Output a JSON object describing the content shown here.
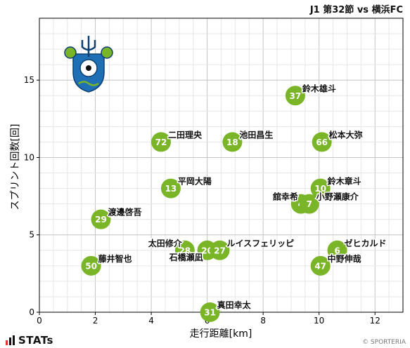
{
  "header": {
    "title": "J1 第32節 vs 横浜FC"
  },
  "footer": {
    "brand": "STATs",
    "credit": "© SPORTERIA"
  },
  "colors": {
    "point": "#7ab527",
    "point_label": "#ffffff",
    "grid": "#cfcfcf",
    "axis": "#000000"
  },
  "logo": {
    "icon": "shonan-bellmare-crest"
  },
  "chart_data": {
    "type": "scatter",
    "xlabel": "走行距離[km]",
    "ylabel": "スプリント回数[回]",
    "xlim": [
      0,
      13
    ],
    "ylim": [
      0,
      19
    ],
    "xticks": [
      0,
      2,
      4,
      6,
      8,
      10,
      12
    ],
    "yticks": [
      0,
      5,
      10,
      15
    ],
    "grid": true,
    "points": [
      {
        "number": "37",
        "name": "鈴木雄斗",
        "x": 9.15,
        "y": 14,
        "label_side": "right"
      },
      {
        "number": "72",
        "name": "二田理央",
        "x": 4.35,
        "y": 11,
        "label_side": "right"
      },
      {
        "number": "18",
        "name": "池田昌生",
        "x": 6.9,
        "y": 11,
        "label_side": "right"
      },
      {
        "number": "66",
        "name": "松本大弥",
        "x": 10.1,
        "y": 11,
        "label_side": "right"
      },
      {
        "number": "13",
        "name": "平岡大陽",
        "x": 4.7,
        "y": 8,
        "label_side": "right"
      },
      {
        "number": "10",
        "name": "鈴木章斗",
        "x": 10.05,
        "y": 8,
        "label_side": "right"
      },
      {
        "number": "4",
        "name": "舘幸希",
        "x": 9.35,
        "y": 7,
        "label_side": "left"
      },
      {
        "number": "7",
        "name": "小野瀬康介",
        "x": 9.65,
        "y": 7,
        "label_side": "right"
      },
      {
        "number": "29",
        "name": "渡邊啓吾",
        "x": 2.2,
        "y": 6,
        "label_side": "right"
      },
      {
        "number": "28",
        "name": "太田修介",
        "x": 5.2,
        "y": 4,
        "label_side": "left"
      },
      {
        "number": "20",
        "name": "石橋瀬凪",
        "x": 6.0,
        "y": 4,
        "label_side": "left-below"
      },
      {
        "number": "27",
        "name": "ルイスフェリッピ",
        "x": 6.45,
        "y": 4,
        "label_side": "right"
      },
      {
        "number": "6",
        "name": "ゼヒカルド",
        "x": 10.65,
        "y": 4,
        "label_side": "right"
      },
      {
        "number": "50",
        "name": "藤井智也",
        "x": 1.85,
        "y": 3,
        "label_side": "right"
      },
      {
        "number": "47",
        "name": "中野伸哉",
        "x": 10.05,
        "y": 3,
        "label_side": "right"
      },
      {
        "number": "31",
        "name": "真田幸太",
        "x": 6.1,
        "y": 0,
        "label_side": "right"
      }
    ]
  }
}
